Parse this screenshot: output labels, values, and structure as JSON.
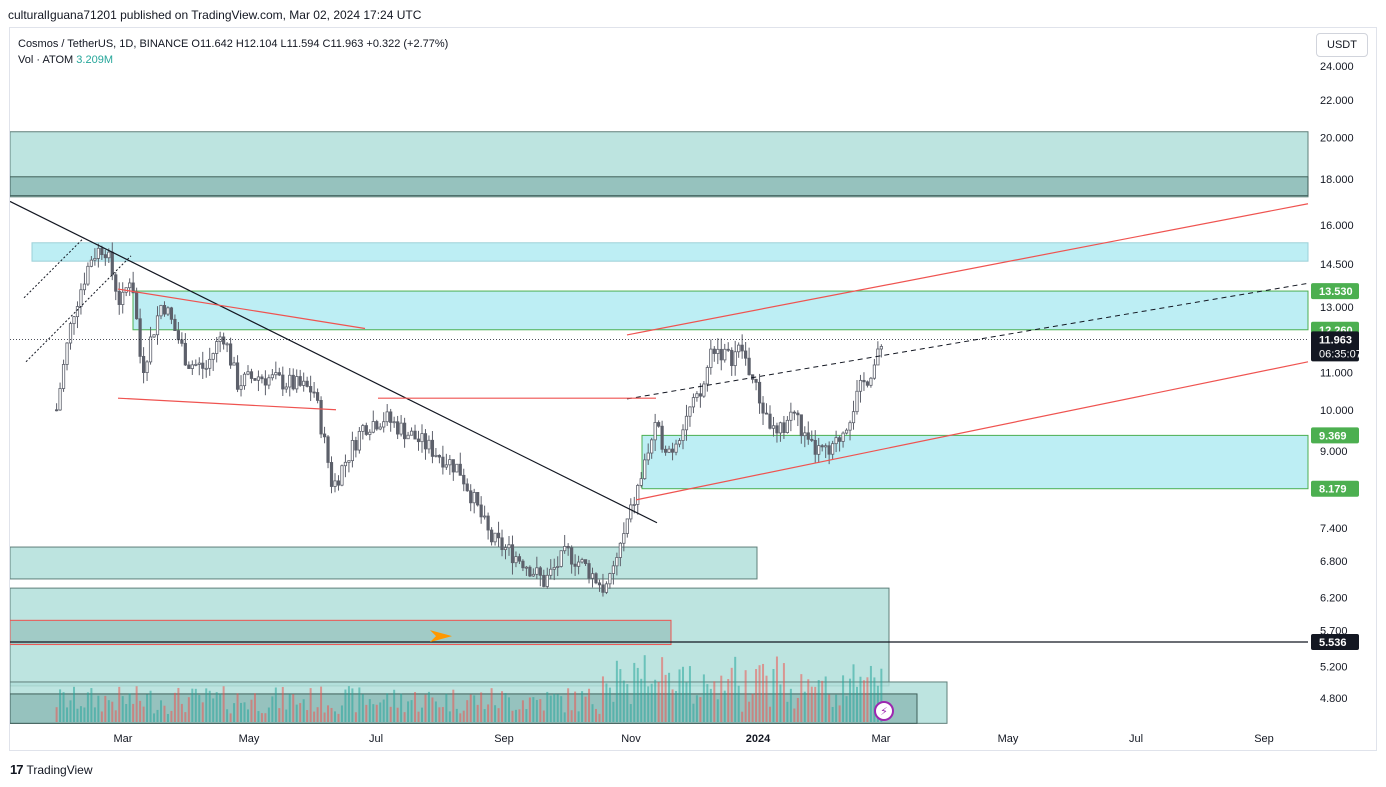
{
  "header": {
    "published": "culturalIguana71201 published on TradingView.com, Mar 02, 2024 17:24 UTC"
  },
  "legend": {
    "symbol": "Cosmos / TetherUS, 1D, BINANCE",
    "open": "O11.642",
    "high": "H12.104",
    "low": "L11.594",
    "close": "C11.963",
    "change": "+0.322 (+2.77%)",
    "vol_label": "Vol · ATOM",
    "vol_value": "3.209M"
  },
  "currency": "USDT",
  "footer": {
    "brand": "TradingView"
  },
  "colors": {
    "up": "#26a69a",
    "down": "#ef5350",
    "zone": "#b2dfdb",
    "cyan_zone": "#b2ebf2",
    "trend": "#ef5350",
    "level": "#4caf50"
  },
  "chart_data": {
    "type": "candlestick",
    "title": "Cosmos / TetherUS, 1D, BINANCE",
    "y_axis": {
      "scale": "log",
      "ylim": [
        4.5,
        25.5
      ],
      "ticks": [
        "24.000",
        "22.000",
        "20.000",
        "18.000",
        "16.000",
        "14.500",
        "13.000",
        "11.000",
        "10.000",
        "9.000",
        "7.400",
        "6.800",
        "6.200",
        "5.700",
        "5.200",
        "4.800"
      ]
    },
    "x_axis": {
      "labels": [
        "Mar",
        "May",
        "Jul",
        "Sep",
        "Nov",
        "2024",
        "Mar",
        "May",
        "Jul",
        "Sep"
      ]
    },
    "price_labels": [
      {
        "value": 13.53,
        "text": "13.530",
        "kind": "level"
      },
      {
        "value": 12.26,
        "text": "12.260",
        "kind": "level"
      },
      {
        "value": 11.963,
        "text": "11.963",
        "kind": "last"
      },
      {
        "value": 9.369,
        "text": "9.369",
        "kind": "level"
      },
      {
        "value": 8.179,
        "text": "8.179",
        "kind": "level"
      },
      {
        "value": 5.536,
        "text": "5.536",
        "kind": "black"
      }
    ],
    "countdown": "06:35:07",
    "price_path": [
      [
        "2023-01-28",
        10.0
      ],
      [
        "2023-02-05",
        12.8
      ],
      [
        "2023-02-14",
        14.8
      ],
      [
        "2023-02-20",
        15.2
      ],
      [
        "2023-02-28",
        13.0
      ],
      [
        "2023-03-05",
        14.2
      ],
      [
        "2023-03-10",
        11.0
      ],
      [
        "2023-03-20",
        13.2
      ],
      [
        "2023-04-01",
        11.3
      ],
      [
        "2023-04-10",
        11.1
      ],
      [
        "2023-04-18",
        12.2
      ],
      [
        "2023-04-25",
        10.7
      ],
      [
        "2023-05-05",
        10.9
      ],
      [
        "2023-05-20",
        10.7
      ],
      [
        "2023-06-01",
        10.5
      ],
      [
        "2023-06-10",
        8.2
      ],
      [
        "2023-06-25",
        9.6
      ],
      [
        "2023-07-05",
        9.8
      ],
      [
        "2023-07-20",
        9.3
      ],
      [
        "2023-08-10",
        8.6
      ],
      [
        "2023-08-25",
        7.2
      ],
      [
        "2023-09-10",
        6.8
      ],
      [
        "2023-09-20",
        6.45
      ],
      [
        "2023-10-01",
        6.95
      ],
      [
        "2023-10-10",
        6.7
      ],
      [
        "2023-10-20",
        6.3
      ],
      [
        "2023-10-28",
        7.2
      ],
      [
        "2023-11-05",
        8.3
      ],
      [
        "2023-11-12",
        9.5
      ],
      [
        "2023-11-20",
        9.0
      ],
      [
        "2023-11-28",
        9.9
      ],
      [
        "2023-12-05",
        10.4
      ],
      [
        "2023-12-10",
        11.8
      ],
      [
        "2023-12-18",
        11.4
      ],
      [
        "2023-12-24",
        11.7
      ],
      [
        "2024-01-02",
        10.2
      ],
      [
        "2024-01-10",
        9.3
      ],
      [
        "2024-01-18",
        10.0
      ],
      [
        "2024-01-25",
        9.1
      ],
      [
        "2024-02-05",
        8.9
      ],
      [
        "2024-02-12",
        9.6
      ],
      [
        "2024-02-20",
        10.6
      ],
      [
        "2024-02-27",
        11.3
      ],
      [
        "2024-03-02",
        11.963
      ]
    ]
  }
}
